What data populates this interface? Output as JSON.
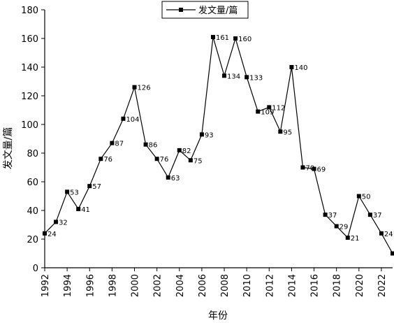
{
  "chart_data": {
    "type": "line",
    "title": "",
    "xlabel": "年份",
    "ylabel": "发文量/篇",
    "xlim": [
      1992,
      2023
    ],
    "ylim": [
      0,
      180
    ],
    "grid": false,
    "legend_position": "top-center",
    "x_ticks": [
      1992,
      1994,
      1996,
      1998,
      2000,
      2002,
      2004,
      2006,
      2008,
      2010,
      2012,
      2014,
      2016,
      2018,
      2020,
      2022
    ],
    "y_ticks": [
      0,
      20,
      40,
      60,
      80,
      100,
      120,
      140,
      160,
      180
    ],
    "series": [
      {
        "name": "发文量/篇",
        "color": "#000000",
        "marker": "square",
        "x": [
          1992,
          1993,
          1994,
          1995,
          1996,
          1997,
          1998,
          1999,
          2000,
          2001,
          2002,
          2003,
          2004,
          2005,
          2006,
          2007,
          2008,
          2009,
          2010,
          2011,
          2012,
          2013,
          2014,
          2015,
          2016,
          2017,
          2018,
          2019,
          2020,
          2021,
          2022,
          2023
        ],
        "values": [
          24,
          32,
          53,
          41,
          57,
          76,
          87,
          104,
          126,
          86,
          76,
          63,
          82,
          75,
          93,
          161,
          134,
          160,
          133,
          109,
          112,
          95,
          140,
          70,
          69,
          37,
          29,
          21,
          50,
          37,
          24,
          10
        ],
        "labels": [
          "24",
          "32",
          "53",
          "41",
          "57",
          "76",
          "87",
          "104",
          "126",
          "86",
          "76",
          "63",
          "82",
          "75",
          "93",
          "161",
          "134",
          "160",
          "133",
          "109",
          "112",
          "95",
          "140",
          "70",
          "69",
          "37",
          "29",
          "21",
          "50",
          "37",
          "24",
          ""
        ]
      }
    ]
  }
}
